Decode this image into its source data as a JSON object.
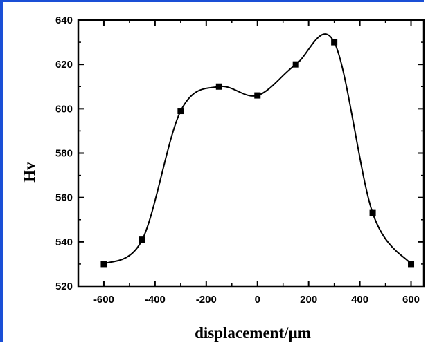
{
  "chart_data": {
    "type": "line",
    "title": "",
    "xlabel": "displacement/µm",
    "ylabel": "Hv",
    "xlim": [
      -700,
      650
    ],
    "ylim": [
      520,
      640
    ],
    "xticks": [
      -600,
      -400,
      -200,
      0,
      200,
      400,
      600
    ],
    "yticks": [
      520,
      540,
      560,
      580,
      600,
      620,
      640
    ],
    "grid": false,
    "legend": "none",
    "marker": "square",
    "line_style": "smooth",
    "series": [
      {
        "x": [
          -600,
          -450,
          -300,
          -150,
          0,
          150,
          300,
          450,
          600
        ],
        "y": [
          530,
          541,
          599,
          610,
          606,
          620,
          630,
          553,
          530
        ]
      }
    ],
    "colors": {
      "frame_accent": "#1a4fd6",
      "line": "#000000",
      "marker": "#000000"
    }
  }
}
